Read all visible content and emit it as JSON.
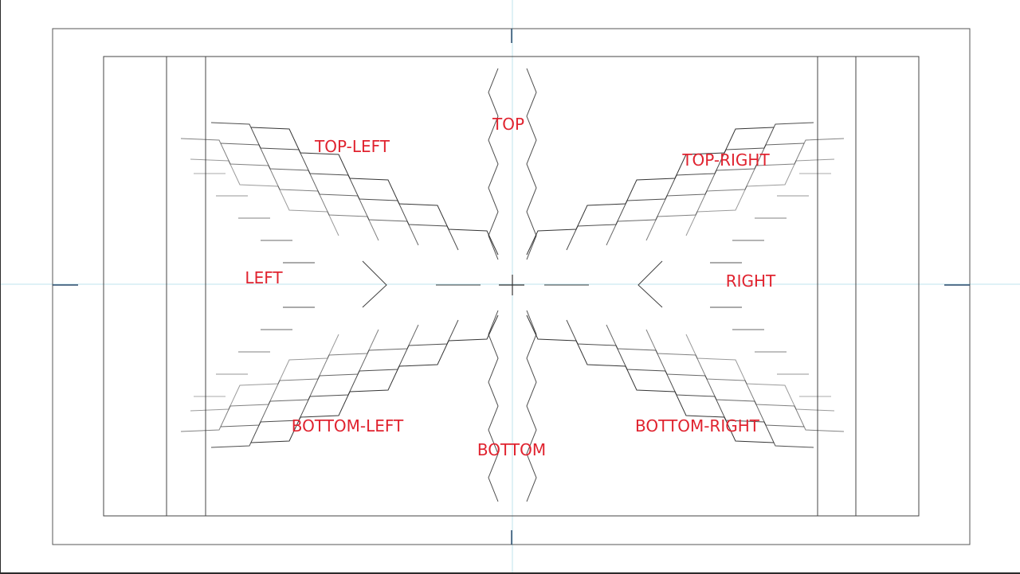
{
  "colors": {
    "label": "#e0232f",
    "line": "#2b2b2b",
    "guide": "#bfe3ee",
    "accent": "#2f9a8a"
  },
  "labels": {
    "top": "TOP",
    "top_left": "TOP-LEFT",
    "top_right": "TOP-RIGHT",
    "left": "LEFT",
    "right": "RIGHT",
    "bottom_left": "BOTTOM-LEFT",
    "bottom": "BOTTOM",
    "bottom_right": "BOTTOM-RIGHT"
  }
}
